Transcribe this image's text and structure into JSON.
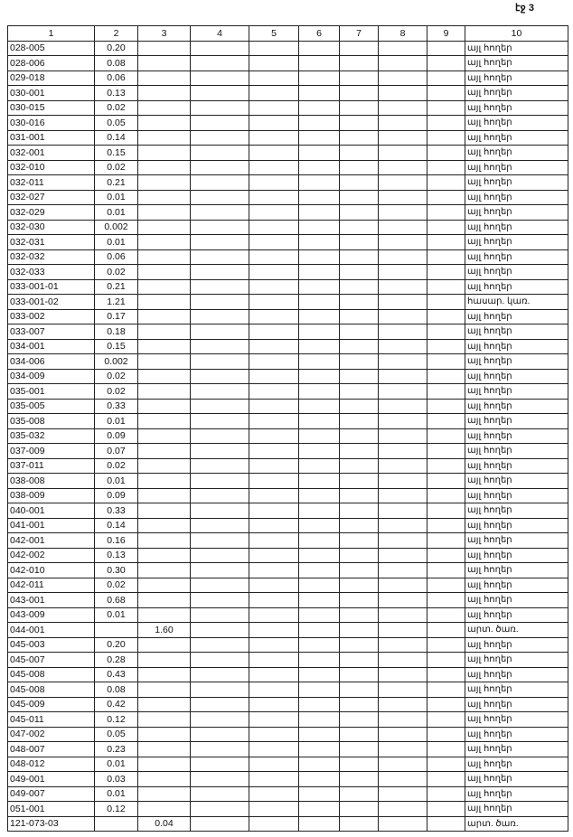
{
  "page_label": "էջ 3",
  "headers": [
    "1",
    "2",
    "3",
    "4",
    "5",
    "6",
    "7",
    "8",
    "9",
    "10"
  ],
  "rows": [
    [
      "028-005",
      "0.20",
      "",
      "այլ հողեր"
    ],
    [
      "028-006",
      "0.08",
      "",
      "այլ հողեր"
    ],
    [
      "029-018",
      "0.06",
      "",
      "այլ հողեր"
    ],
    [
      "030-001",
      "0.13",
      "",
      "այլ հողեր"
    ],
    [
      "030-015",
      "0.02",
      "",
      "այլ հողեր"
    ],
    [
      "030-016",
      "0.05",
      "",
      "այլ հողեր"
    ],
    [
      "031-001",
      "0.14",
      "",
      "այլ հողեր"
    ],
    [
      "032-001",
      "0.15",
      "",
      "այլ հողեր"
    ],
    [
      "032-010",
      "0.02",
      "",
      "այլ հողեր"
    ],
    [
      "032-011",
      "0.21",
      "",
      "այլ հողեր"
    ],
    [
      "032-027",
      "0.01",
      "",
      "այլ հողեր"
    ],
    [
      "032-029",
      "0.01",
      "",
      "այլ հողեր"
    ],
    [
      "032-030",
      "0.002",
      "",
      "այլ հողեր"
    ],
    [
      "032-031",
      "0.01",
      "",
      "այլ հողեր"
    ],
    [
      "032-032",
      "0.06",
      "",
      "այլ հողեր"
    ],
    [
      "032-033",
      "0.02",
      "",
      "այլ հողեր"
    ],
    [
      "033-001-01",
      "0.21",
      "",
      "այլ հողեր"
    ],
    [
      "033-001-02",
      "1.21",
      "",
      "հասար. կառ."
    ],
    [
      "033-002",
      "0.17",
      "",
      "այլ հողեր"
    ],
    [
      "033-007",
      "0.18",
      "",
      "այլ հողեր"
    ],
    [
      "034-001",
      "0.15",
      "",
      "այլ հողեր"
    ],
    [
      "034-006",
      "0.002",
      "",
      "այլ հողեր"
    ],
    [
      "034-009",
      "0.02",
      "",
      "այլ հողեր"
    ],
    [
      "035-001",
      "0.02",
      "",
      "այլ հողեր"
    ],
    [
      "035-005",
      "0.33",
      "",
      "այլ հողեր"
    ],
    [
      "035-008",
      "0.01",
      "",
      "այլ հողեր"
    ],
    [
      "035-032",
      "0.09",
      "",
      "այլ հողեր"
    ],
    [
      "037-009",
      "0.07",
      "",
      "այլ հողեր"
    ],
    [
      "037-011",
      "0.02",
      "",
      "այլ հողեր"
    ],
    [
      "038-008",
      "0.01",
      "",
      "այլ հողեր"
    ],
    [
      "038-009",
      "0.09",
      "",
      "այլ հողեր"
    ],
    [
      "040-001",
      "0.33",
      "",
      "այլ հողեր"
    ],
    [
      "041-001",
      "0.14",
      "",
      "այլ հողեր"
    ],
    [
      "042-001",
      "0.16",
      "",
      "այլ հողեր"
    ],
    [
      "042-002",
      "0.13",
      "",
      "այլ հողեր"
    ],
    [
      "042-010",
      "0.30",
      "",
      "այլ հողեր"
    ],
    [
      "042-011",
      "0.02",
      "",
      "այլ հողեր"
    ],
    [
      "043-001",
      "0.68",
      "",
      "այլ հողեր"
    ],
    [
      "043-009",
      "0.01",
      "",
      "այլ հողեր"
    ],
    [
      "044-001",
      "",
      "1.60",
      "արտ. ծառ."
    ],
    [
      "045-003",
      "0.20",
      "",
      "այլ հողեր"
    ],
    [
      "045-007",
      "0.28",
      "",
      "այլ հողեր"
    ],
    [
      "045-008",
      "0.43",
      "",
      "այլ հողեր"
    ],
    [
      "045-008",
      "0.08",
      "",
      "այլ հողեր"
    ],
    [
      "045-009",
      "0.42",
      "",
      "այլ հողեր"
    ],
    [
      "045-011",
      "0.12",
      "",
      "այլ հողեր"
    ],
    [
      "047-002",
      "0.05",
      "",
      "այլ հողեր"
    ],
    [
      "048-007",
      "0.23",
      "",
      "այլ հողեր"
    ],
    [
      "048-012",
      "0.01",
      "",
      "այլ հողեր"
    ],
    [
      "049-001",
      "0.03",
      "",
      "այլ հողեր"
    ],
    [
      "049-007",
      "0.01",
      "",
      "այլ հողեր"
    ],
    [
      "051-001",
      "0.12",
      "",
      "այլ հողեր"
    ],
    [
      "121-073-03",
      "",
      "0.04",
      "արտ. ծառ."
    ]
  ]
}
